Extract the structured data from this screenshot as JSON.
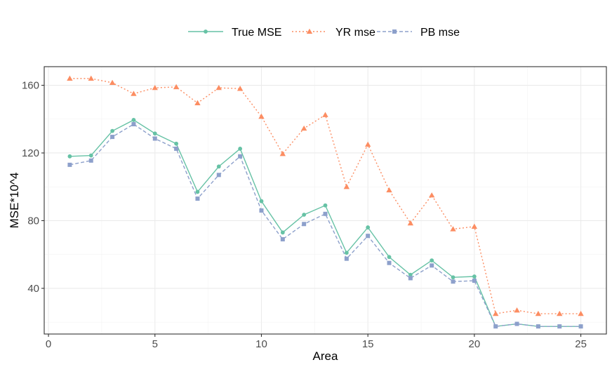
{
  "chart_data": {
    "type": "line",
    "title": "",
    "xlabel": "Area",
    "ylabel": "MSE*10^4",
    "xlim": [
      -0.2,
      26.2
    ],
    "ylim": [
      13,
      171
    ],
    "x_ticks": [
      0,
      5,
      10,
      15,
      20,
      25
    ],
    "y_ticks": [
      40,
      80,
      120,
      160
    ],
    "grid": true,
    "legend_position": "top",
    "x": [
      1,
      2,
      3,
      4,
      5,
      6,
      7,
      8,
      9,
      10,
      11,
      12,
      13,
      14,
      15,
      16,
      17,
      18,
      19,
      20,
      21,
      22,
      23,
      24,
      25
    ],
    "series": [
      {
        "name": "True MSE",
        "color": "#66c2a5",
        "marker": "circle",
        "dash": "solid",
        "values": [
          118,
          118.5,
          133,
          139.5,
          131.5,
          125.5,
          97,
          112,
          122.5,
          91.5,
          73,
          83.5,
          89,
          61,
          76,
          58.5,
          48,
          56.5,
          46.5,
          47,
          17.5,
          19,
          17.5,
          17.5,
          17.5
        ]
      },
      {
        "name": "YR mse",
        "color": "#fc8d62",
        "marker": "triangle",
        "dash": "dotted",
        "values": [
          164,
          164,
          161.5,
          155,
          158.5,
          159,
          149.5,
          158.5,
          158,
          141.5,
          119.5,
          134.5,
          142.5,
          100,
          125,
          98,
          78.5,
          95,
          75,
          76.5,
          25,
          27,
          25,
          25,
          25
        ]
      },
      {
        "name": "PB mse",
        "color": "#8da0cb",
        "marker": "square",
        "dash": "dashed",
        "values": [
          113,
          115.5,
          129.5,
          137,
          128.5,
          122.5,
          93,
          107,
          118,
          86,
          69,
          78,
          84,
          57.5,
          71,
          55,
          46,
          53.5,
          44,
          44.5,
          17.5,
          19,
          17.5,
          17.5,
          17.5
        ]
      }
    ]
  }
}
